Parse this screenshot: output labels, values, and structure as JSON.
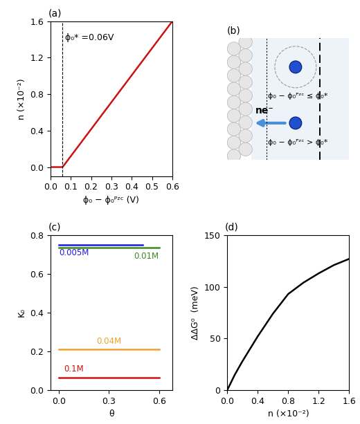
{
  "chart_data": [
    {
      "type": "line",
      "panel": "(a)",
      "x_label": "ϕ₀ − ϕ₀ᴾᶻᶜ (V)",
      "y_label": "n (×10⁻²)",
      "annotation": "ϕ₀* =0.06V",
      "threshold": 0.06,
      "series": [
        {
          "color": "#d01010",
          "x": [
            0.0,
            0.06,
            0.6
          ],
          "values": [
            0.0,
            0.0,
            1.6
          ]
        }
      ],
      "xlim": [
        0.0,
        0.6
      ],
      "xticks": [
        0.0,
        0.1,
        0.2,
        0.3,
        0.4,
        0.5,
        0.6
      ],
      "ylim": [
        -0.1,
        1.6
      ],
      "yticks": [
        0.0,
        0.4,
        0.8,
        1.2,
        1.6
      ]
    },
    {
      "type": "diagram",
      "panel": "(b)",
      "texts": {
        "electron_transfer": "ne⁻",
        "upper_condition": "ϕ₀ − ϕ₀ᴾᶻᶜ ≤ ϕ₀*",
        "lower_condition": "ϕ₀ − ϕ₀ᴾᶻᶜ > ϕ₀*"
      }
    },
    {
      "type": "line",
      "panel": "(c)",
      "x_label": "θ",
      "y_label": "K₀",
      "series": [
        {
          "name": "0.005M",
          "color": "#1a1ae6",
          "x": [
            0.0,
            0.5
          ],
          "values": [
            0.75,
            0.75
          ]
        },
        {
          "name": "0.01M",
          "color": "#3a8a1e",
          "x": [
            0.0,
            0.6
          ],
          "values": [
            0.735,
            0.735
          ]
        },
        {
          "name": "0.04M",
          "color": "#f0a030",
          "x": [
            0.0,
            0.6
          ],
          "values": [
            0.21,
            0.21
          ]
        },
        {
          "name": "0.1M",
          "color": "#d01010",
          "x": [
            0.0,
            0.6
          ],
          "values": [
            0.065,
            0.065
          ]
        }
      ],
      "xlim": [
        -0.05,
        0.68
      ],
      "xticks": [
        0.0,
        0.3,
        0.6
      ],
      "ylim": [
        0.0,
        0.8
      ],
      "yticks": [
        0.0,
        0.2,
        0.4,
        0.6,
        0.8
      ]
    },
    {
      "type": "line",
      "panel": "(d)",
      "x_label": "n (×10⁻²)",
      "y_label": "ΔΔG⁰  (meV)",
      "series": [
        {
          "color": "#000000",
          "x": [
            0.0,
            0.1,
            0.2,
            0.4,
            0.6,
            0.8,
            1.0,
            1.2,
            1.4,
            1.6
          ],
          "values": [
            0,
            15,
            28,
            52,
            74,
            93,
            104,
            113,
            121,
            127
          ]
        }
      ],
      "xlim": [
        0.0,
        1.6
      ],
      "xticks": [
        0.0,
        0.4,
        0.8,
        1.2,
        1.6
      ],
      "ylim": [
        0,
        150
      ],
      "yticks": [
        0,
        50,
        100,
        150
      ]
    }
  ]
}
